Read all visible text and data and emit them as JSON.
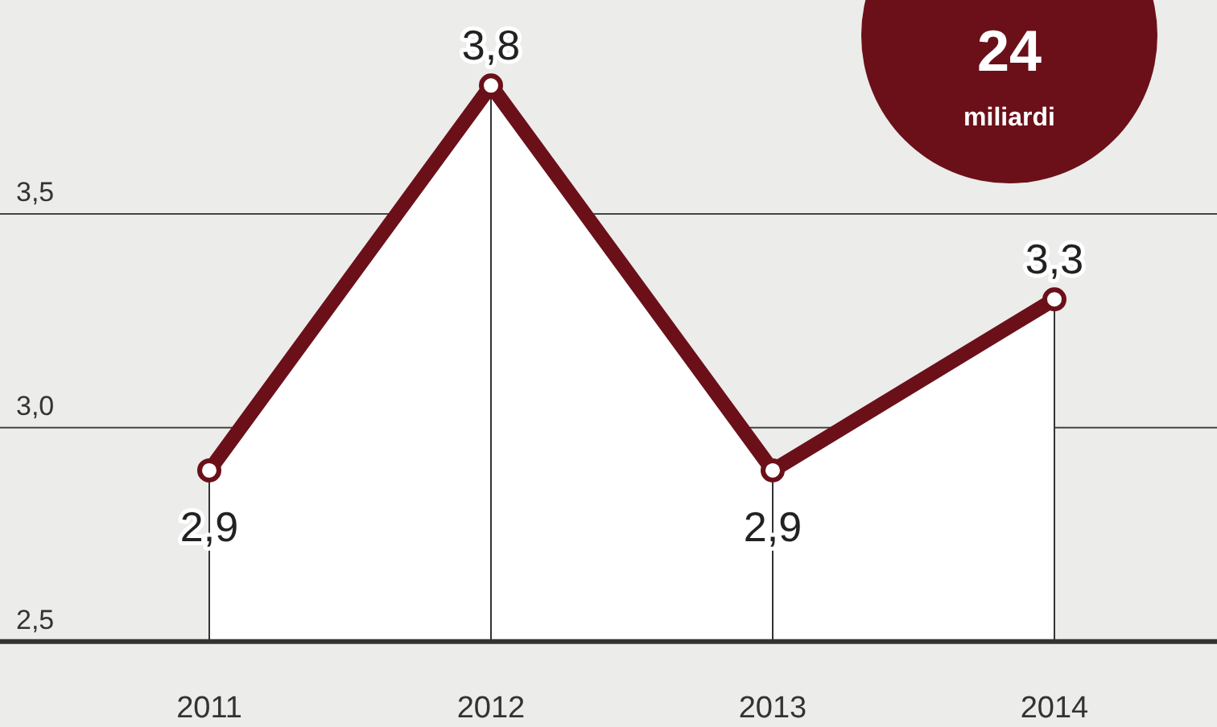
{
  "chart_data": {
    "type": "area",
    "categories": [
      "2011",
      "2012",
      "2013",
      "2014"
    ],
    "series": [
      {
        "color": "#6b1019",
        "values": [
          2.9,
          3.8,
          2.9,
          3.3
        ],
        "value_labels": [
          "2,9",
          "3,8",
          "2,9",
          "3,3"
        ]
      }
    ],
    "ylim": [
      2.3,
      4.0
    ],
    "yticks": [
      {
        "value": 2.5,
        "label": "2,5"
      },
      {
        "value": 3.0,
        "label": "3,0"
      },
      {
        "value": 3.5,
        "label": "3,5"
      }
    ],
    "grid": "y",
    "ref_lines": [
      {
        "axis": "y",
        "value": 2.5
      }
    ],
    "marker": "circle",
    "annotations": [
      "24",
      "miliardi"
    ]
  }
}
